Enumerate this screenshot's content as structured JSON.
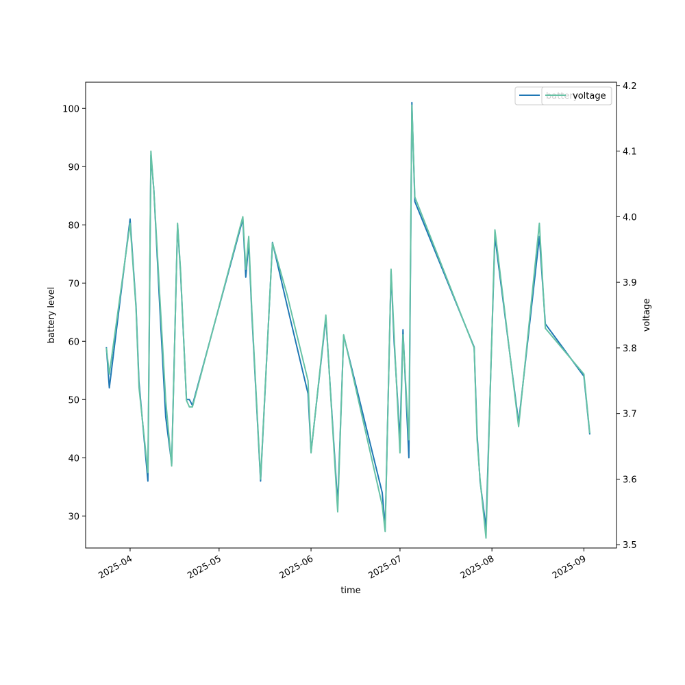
{
  "chart_data": {
    "type": "line",
    "title": "",
    "xlabel": "time",
    "ylabel_left": "battery level",
    "ylabel_right": "voltage",
    "x_range": [
      "2025-03-17",
      "2025-09-12"
    ],
    "ylim_left": [
      24.5,
      104.5
    ],
    "ylim_right": [
      3.495,
      4.205
    ],
    "x_ticks": [
      {
        "date": "2025-04-01",
        "label": "2025-04"
      },
      {
        "date": "2025-05-01",
        "label": "2025-05"
      },
      {
        "date": "2025-06-01",
        "label": "2025-06"
      },
      {
        "date": "2025-07-01",
        "label": "2025-07"
      },
      {
        "date": "2025-08-01",
        "label": "2025-08"
      },
      {
        "date": "2025-09-01",
        "label": "2025-09"
      }
    ],
    "y_ticks_left": [
      30,
      40,
      50,
      60,
      70,
      80,
      90,
      100
    ],
    "y_ticks_right": [
      "3.5",
      "3.6",
      "3.7",
      "3.8",
      "3.9",
      "4.0",
      "4.1",
      "4.2"
    ],
    "grid": false,
    "legend": {
      "placement": "top-right",
      "entries": [
        "battery",
        "voltage"
      ]
    },
    "series": [
      {
        "name": "battery",
        "axis": "left",
        "color": "#1f77b4",
        "x": [
          "2025-03-24",
          "2025-03-25",
          "2025-04-01",
          "2025-04-03",
          "2025-04-04",
          "2025-04-07",
          "2025-04-08",
          "2025-04-09",
          "2025-04-11",
          "2025-04-13",
          "2025-04-15",
          "2025-04-17",
          "2025-04-18",
          "2025-04-20",
          "2025-04-21",
          "2025-04-22",
          "2025-05-09",
          "2025-05-10",
          "2025-05-11",
          "2025-05-12",
          "2025-05-15",
          "2025-05-19",
          "2025-05-24",
          "2025-05-31",
          "2025-06-01",
          "2025-06-06",
          "2025-06-10",
          "2025-06-12",
          "2025-06-25",
          "2025-06-26",
          "2025-06-28",
          "2025-06-29",
          "2025-07-01",
          "2025-07-02",
          "2025-07-04",
          "2025-07-05",
          "2025-07-06",
          "2025-07-26",
          "2025-07-27",
          "2025-07-28",
          "2025-07-30",
          "2025-08-02",
          "2025-08-10",
          "2025-08-17",
          "2025-08-19",
          "2025-09-01",
          "2025-09-03"
        ],
        "y": [
          59,
          52,
          81,
          66,
          53,
          36,
          92,
          86,
          66,
          47,
          39,
          80,
          72,
          50,
          50,
          49,
          81,
          71,
          77,
          65,
          36,
          77,
          66,
          51,
          41,
          64,
          32,
          61,
          34,
          28,
          72,
          60,
          43,
          62,
          40,
          101,
          84,
          59,
          44,
          36,
          28,
          78,
          46,
          78,
          63,
          54,
          44
        ]
      },
      {
        "name": "voltage",
        "axis": "right",
        "color": "#66c2a5",
        "x": [
          "2025-03-24",
          "2025-03-25",
          "2025-04-01",
          "2025-04-03",
          "2025-04-04",
          "2025-04-07",
          "2025-04-08",
          "2025-04-09",
          "2025-04-11",
          "2025-04-13",
          "2025-04-15",
          "2025-04-17",
          "2025-04-18",
          "2025-04-20",
          "2025-04-21",
          "2025-04-22",
          "2025-05-09",
          "2025-05-10",
          "2025-05-11",
          "2025-05-12",
          "2025-05-15",
          "2025-05-19",
          "2025-05-24",
          "2025-05-31",
          "2025-06-01",
          "2025-06-06",
          "2025-06-10",
          "2025-06-12",
          "2025-06-25",
          "2025-06-26",
          "2025-06-28",
          "2025-06-29",
          "2025-07-01",
          "2025-07-02",
          "2025-07-04",
          "2025-07-05",
          "2025-07-06",
          "2025-07-26",
          "2025-07-27",
          "2025-07-28",
          "2025-07-30",
          "2025-08-02",
          "2025-08-10",
          "2025-08-17",
          "2025-08-19",
          "2025-09-01",
          "2025-09-03"
        ],
        "y": [
          3.8,
          3.76,
          3.99,
          3.86,
          3.74,
          3.61,
          4.1,
          4.04,
          3.88,
          3.72,
          3.62,
          3.99,
          3.92,
          3.72,
          3.71,
          3.71,
          4.0,
          3.92,
          3.97,
          3.86,
          3.6,
          3.96,
          3.88,
          3.75,
          3.64,
          3.85,
          3.55,
          3.82,
          3.56,
          3.52,
          3.92,
          3.82,
          3.64,
          3.82,
          3.66,
          4.17,
          4.03,
          3.8,
          3.66,
          3.6,
          3.51,
          3.98,
          3.68,
          3.99,
          3.83,
          3.76,
          3.67
        ]
      }
    ]
  }
}
